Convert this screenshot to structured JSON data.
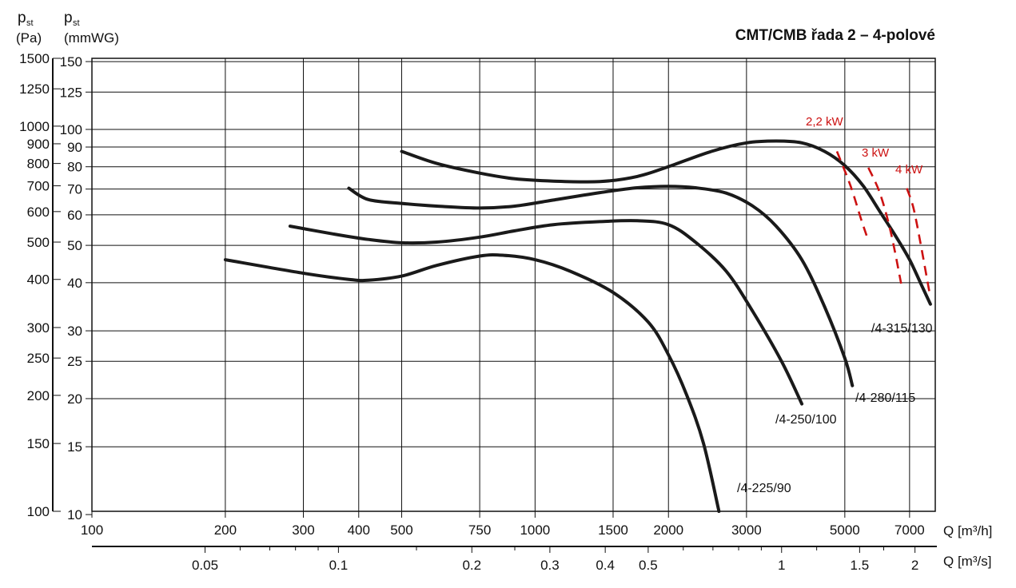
{
  "title": "CMT/CMB řada 2 – 4-polové",
  "y_axis_pa": {
    "symbol": "p",
    "subscript": "st",
    "unit": "(Pa)",
    "ticks": [
      100,
      150,
      200,
      250,
      300,
      400,
      500,
      600,
      700,
      800,
      900,
      1000,
      1250,
      1500
    ]
  },
  "y_axis_mm": {
    "symbol": "p",
    "subscript": "st",
    "unit": "(mmWG)",
    "ticks": [
      10,
      15,
      20,
      25,
      30,
      40,
      50,
      60,
      70,
      80,
      90,
      100,
      125,
      150
    ]
  },
  "x_axis_m3h": {
    "unit": "Q [m³/h]",
    "ticks": [
      100,
      200,
      300,
      400,
      500,
      750,
      1000,
      1500,
      2000,
      3000,
      5000,
      7000
    ]
  },
  "x_axis_m3s": {
    "unit": "Q [m³/s]",
    "ticks": [
      0.05,
      0.1,
      0.2,
      0.3,
      0.4,
      0.5,
      1,
      1.5,
      2
    ]
  },
  "chart_data": {
    "type": "line",
    "title": "CMT/CMB řada 2 – 4-polové",
    "xlabel": "Q [m³/h]",
    "ylabel": "pst (Pa)",
    "xscale": "log",
    "yscale": "log",
    "xlim": [
      100,
      8000
    ],
    "ylim": [
      100,
      1500
    ],
    "grid": true,
    "series": [
      {
        "name": "/4-225/90",
        "x": [
          200,
          300,
          380,
          420,
          500,
          600,
          750,
          850,
          1000,
          1200,
          1500,
          1800,
          2000,
          2200,
          2400,
          2600
        ],
        "y": [
          450,
          415,
          400,
          398,
          408,
          435,
          460,
          462,
          450,
          420,
          370,
          310,
          255,
          200,
          150,
          100
        ]
      },
      {
        "name": "/4-250/100",
        "x": [
          280,
          350,
          420,
          500,
          600,
          750,
          900,
          1100,
          1400,
          1700,
          2000,
          2300,
          2700,
          3100,
          3600,
          4000
        ],
        "y": [
          550,
          525,
          508,
          498,
          500,
          515,
          535,
          555,
          565,
          568,
          555,
          500,
          420,
          330,
          245,
          190
        ]
      },
      {
        "name": "/4-280/115",
        "x": [
          380,
          420,
          500,
          600,
          750,
          900,
          1100,
          1400,
          1700,
          2000,
          2300,
          2700,
          3100,
          3500,
          4000,
          4500,
          5000,
          5200
        ],
        "y": [
          690,
          645,
          630,
          620,
          613,
          620,
          643,
          672,
          692,
          698,
          692,
          670,
          620,
          550,
          450,
          340,
          250,
          212
        ]
      },
      {
        "name": "/4-315/130",
        "x": [
          500,
          600,
          750,
          900,
          1100,
          1400,
          1700,
          2000,
          2500,
          3000,
          3500,
          4000,
          4500,
          5000,
          5500,
          6000,
          6500,
          7000,
          7500,
          7800
        ],
        "y": [
          860,
          800,
          755,
          730,
          720,
          718,
          740,
          785,
          860,
          905,
          915,
          905,
          860,
          790,
          700,
          600,
          520,
          450,
          380,
          345
        ]
      }
    ],
    "power_lines": [
      {
        "name": "2,2 kW",
        "x": [
          4800,
          5150,
          5450,
          5600
        ],
        "y": [
          860,
          700,
          570,
          520
        ]
      },
      {
        "name": "3 kW",
        "x": [
          5650,
          6000,
          6350,
          6700
        ],
        "y": [
          780,
          670,
          530,
          390
        ]
      },
      {
        "name": "4 kW",
        "x": [
          6900,
          7150,
          7450,
          7780
        ],
        "y": [
          690,
          610,
          480,
          365
        ]
      }
    ]
  }
}
